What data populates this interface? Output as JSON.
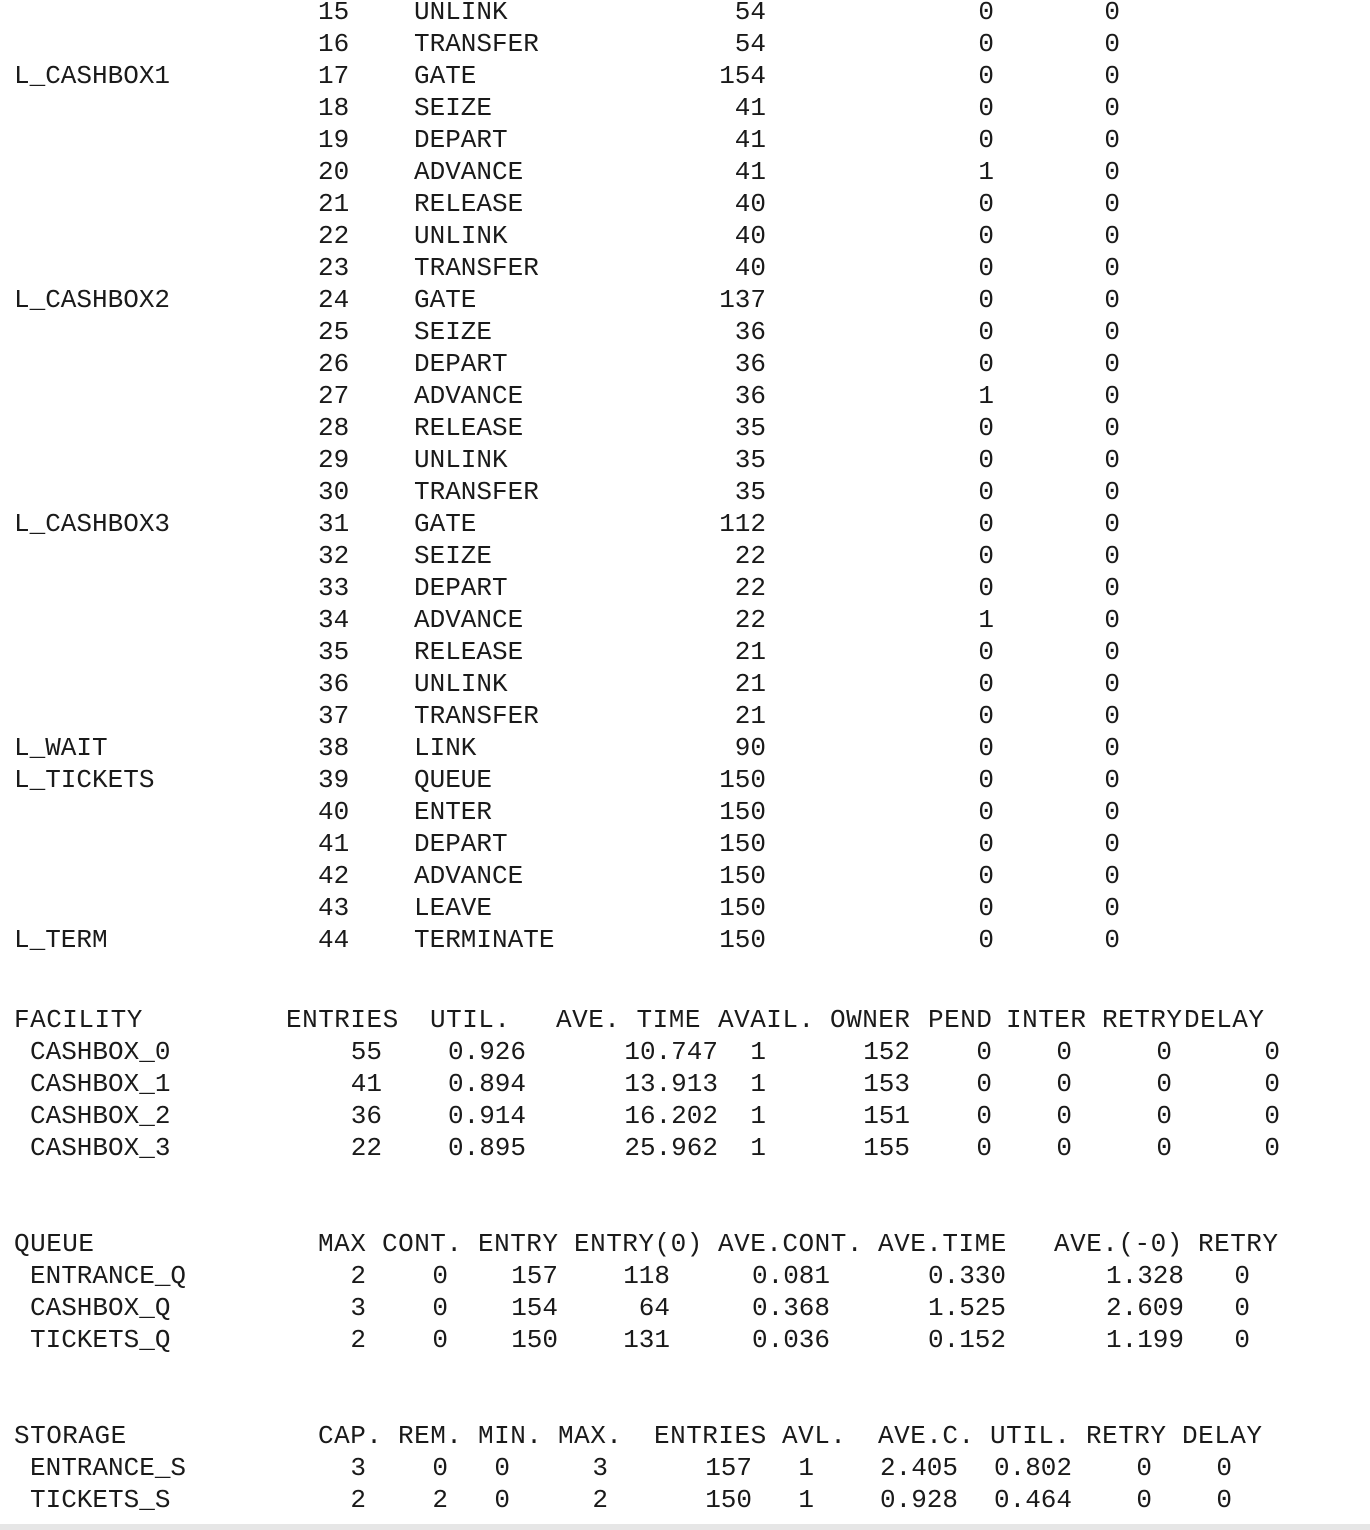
{
  "blocks": [
    {
      "label": "",
      "loc": "15",
      "type": "UNLINK",
      "entry": "54",
      "current": "0",
      "retry": "0"
    },
    {
      "label": "",
      "loc": "16",
      "type": "TRANSFER",
      "entry": "54",
      "current": "0",
      "retry": "0"
    },
    {
      "label": "L_CASHBOX1",
      "loc": "17",
      "type": "GATE",
      "entry": "154",
      "current": "0",
      "retry": "0"
    },
    {
      "label": "",
      "loc": "18",
      "type": "SEIZE",
      "entry": "41",
      "current": "0",
      "retry": "0"
    },
    {
      "label": "",
      "loc": "19",
      "type": "DEPART",
      "entry": "41",
      "current": "0",
      "retry": "0"
    },
    {
      "label": "",
      "loc": "20",
      "type": "ADVANCE",
      "entry": "41",
      "current": "1",
      "retry": "0"
    },
    {
      "label": "",
      "loc": "21",
      "type": "RELEASE",
      "entry": "40",
      "current": "0",
      "retry": "0"
    },
    {
      "label": "",
      "loc": "22",
      "type": "UNLINK",
      "entry": "40",
      "current": "0",
      "retry": "0"
    },
    {
      "label": "",
      "loc": "23",
      "type": "TRANSFER",
      "entry": "40",
      "current": "0",
      "retry": "0"
    },
    {
      "label": "L_CASHBOX2",
      "loc": "24",
      "type": "GATE",
      "entry": "137",
      "current": "0",
      "retry": "0"
    },
    {
      "label": "",
      "loc": "25",
      "type": "SEIZE",
      "entry": "36",
      "current": "0",
      "retry": "0"
    },
    {
      "label": "",
      "loc": "26",
      "type": "DEPART",
      "entry": "36",
      "current": "0",
      "retry": "0"
    },
    {
      "label": "",
      "loc": "27",
      "type": "ADVANCE",
      "entry": "36",
      "current": "1",
      "retry": "0"
    },
    {
      "label": "",
      "loc": "28",
      "type": "RELEASE",
      "entry": "35",
      "current": "0",
      "retry": "0"
    },
    {
      "label": "",
      "loc": "29",
      "type": "UNLINK",
      "entry": "35",
      "current": "0",
      "retry": "0"
    },
    {
      "label": "",
      "loc": "30",
      "type": "TRANSFER",
      "entry": "35",
      "current": "0",
      "retry": "0"
    },
    {
      "label": "L_CASHBOX3",
      "loc": "31",
      "type": "GATE",
      "entry": "112",
      "current": "0",
      "retry": "0"
    },
    {
      "label": "",
      "loc": "32",
      "type": "SEIZE",
      "entry": "22",
      "current": "0",
      "retry": "0"
    },
    {
      "label": "",
      "loc": "33",
      "type": "DEPART",
      "entry": "22",
      "current": "0",
      "retry": "0"
    },
    {
      "label": "",
      "loc": "34",
      "type": "ADVANCE",
      "entry": "22",
      "current": "1",
      "retry": "0"
    },
    {
      "label": "",
      "loc": "35",
      "type": "RELEASE",
      "entry": "21",
      "current": "0",
      "retry": "0"
    },
    {
      "label": "",
      "loc": "36",
      "type": "UNLINK",
      "entry": "21",
      "current": "0",
      "retry": "0"
    },
    {
      "label": "",
      "loc": "37",
      "type": "TRANSFER",
      "entry": "21",
      "current": "0",
      "retry": "0"
    },
    {
      "label": "L_WAIT",
      "loc": "38",
      "type": "LINK",
      "entry": "90",
      "current": "0",
      "retry": "0"
    },
    {
      "label": "L_TICKETS",
      "loc": "39",
      "type": "QUEUE",
      "entry": "150",
      "current": "0",
      "retry": "0"
    },
    {
      "label": "",
      "loc": "40",
      "type": "ENTER",
      "entry": "150",
      "current": "0",
      "retry": "0"
    },
    {
      "label": "",
      "loc": "41",
      "type": "DEPART",
      "entry": "150",
      "current": "0",
      "retry": "0"
    },
    {
      "label": "",
      "loc": "42",
      "type": "ADVANCE",
      "entry": "150",
      "current": "0",
      "retry": "0"
    },
    {
      "label": "",
      "loc": "43",
      "type": "LEAVE",
      "entry": "150",
      "current": "0",
      "retry": "0"
    },
    {
      "label": "L_TERM",
      "loc": "44",
      "type": "TERMINATE",
      "entry": "150",
      "current": "0",
      "retry": "0"
    }
  ],
  "facility": {
    "headers": [
      "FACILITY",
      "ENTRIES",
      "UTIL.",
      "AVE. TIME",
      "AVAIL.",
      "OWNER",
      "PEND",
      "INTER",
      "RETRY",
      "DELAY"
    ],
    "rows": [
      [
        "CASHBOX_0",
        "55",
        "0.926",
        "10.747",
        "1",
        "152",
        "0",
        "0",
        "0",
        "0"
      ],
      [
        "CASHBOX_1",
        "41",
        "0.894",
        "13.913",
        "1",
        "153",
        "0",
        "0",
        "0",
        "0"
      ],
      [
        "CASHBOX_2",
        "36",
        "0.914",
        "16.202",
        "1",
        "151",
        "0",
        "0",
        "0",
        "0"
      ],
      [
        "CASHBOX_3",
        "22",
        "0.895",
        "25.962",
        "1",
        "155",
        "0",
        "0",
        "0",
        "0"
      ]
    ]
  },
  "queue": {
    "headers": [
      "QUEUE",
      "MAX",
      "CONT.",
      "ENTRY",
      "ENTRY(0)",
      "AVE.CONT.",
      "AVE.TIME",
      "AVE.(-0)",
      "RETRY"
    ],
    "rows": [
      [
        "ENTRANCE_Q",
        "2",
        "0",
        "157",
        "118",
        "0.081",
        "0.330",
        "1.328",
        "0"
      ],
      [
        "CASHBOX_Q",
        "3",
        "0",
        "154",
        "64",
        "0.368",
        "1.525",
        "2.609",
        "0"
      ],
      [
        "TICKETS_Q",
        "2",
        "0",
        "150",
        "131",
        "0.036",
        "0.152",
        "1.199",
        "0"
      ]
    ]
  },
  "storage": {
    "headers": [
      "STORAGE",
      "CAP.",
      "REM.",
      "MIN.",
      "MAX.",
      "ENTRIES",
      "AVL.",
      "AVE.C.",
      "UTIL.",
      "RETRY",
      "DELAY"
    ],
    "rows": [
      [
        "ENTRANCE_S",
        "3",
        "0",
        "0",
        "3",
        "157",
        "1",
        "2.405",
        "0.802",
        "0",
        "0"
      ],
      [
        "TICKETS_S",
        "2",
        "2",
        "0",
        "2",
        "150",
        "1",
        "0.928",
        "0.464",
        "0",
        "0"
      ]
    ]
  }
}
